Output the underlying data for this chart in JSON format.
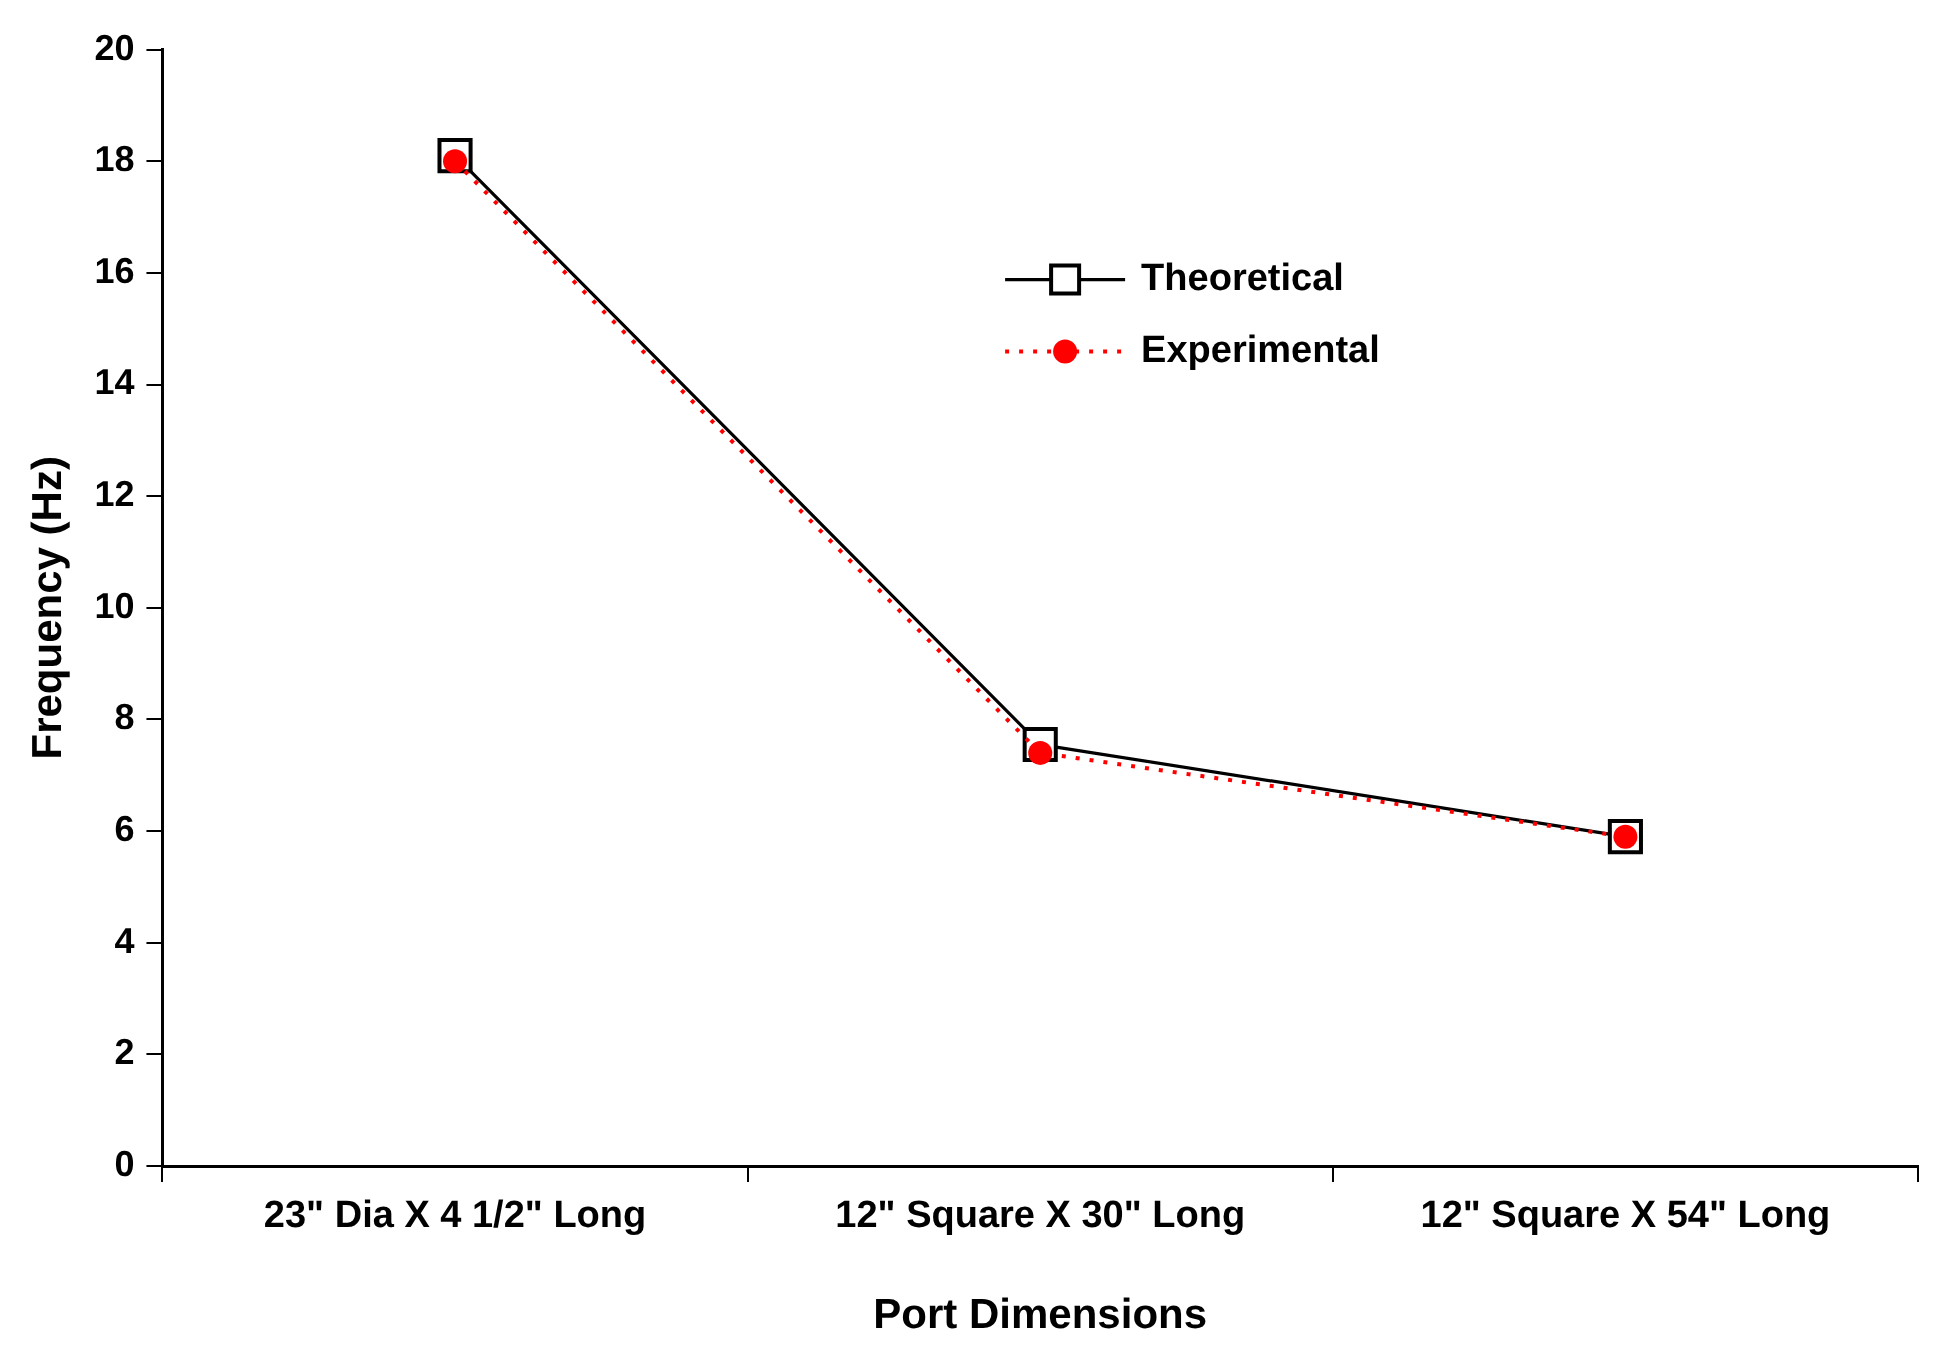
{
  "chart_data": {
    "type": "line",
    "xlabel": "Port Dimensions",
    "ylabel": "Frequency (Hz)",
    "categories": [
      "23\" Dia X 4 1/2\" Long",
      "12\" Square X 30\" Long",
      "12\" Square X 54\" Long"
    ],
    "series": [
      {
        "name": "Theoretical",
        "color": "#000000",
        "values": [
          18.1,
          7.55,
          5.9
        ],
        "marker": "square",
        "line_style": "solid"
      },
      {
        "name": "Experimental",
        "color": "#ff0000",
        "values": [
          18.0,
          7.4,
          5.9
        ],
        "marker": "circle",
        "line_style": "dotted"
      }
    ],
    "ylim": [
      0,
      20
    ],
    "yticks": [
      0,
      2,
      4,
      6,
      8,
      10,
      12,
      14,
      16,
      18,
      20
    ],
    "grid": false,
    "legend": "top right"
  }
}
